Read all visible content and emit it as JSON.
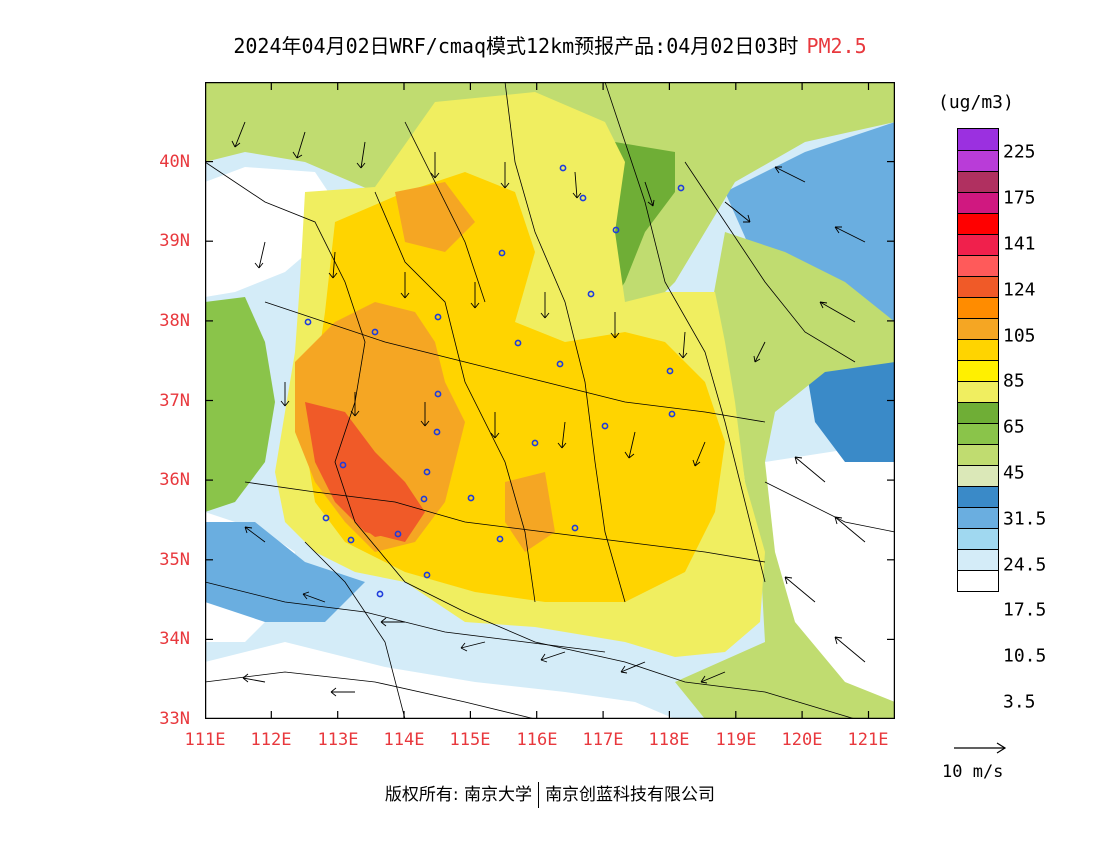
{
  "title": {
    "main": "2024年04月02日WRF/cmaq模式12km预报产品:04月02日03时",
    "pollutant": "PM2.5"
  },
  "map": {
    "lat_labels": [
      "40N",
      "39N",
      "38N",
      "37N",
      "36N",
      "35N",
      "34N",
      "33N"
    ],
    "lon_labels": [
      "111E",
      "112E",
      "113E",
      "114E",
      "115E",
      "116E",
      "117E",
      "118E",
      "119E",
      "120E",
      "121E"
    ],
    "lat_range": [
      33,
      41
    ],
    "lon_range": [
      111,
      121.4
    ]
  },
  "legend": {
    "unit": "(ug/m3)",
    "levels": [
      "225",
      "175",
      "141",
      "124",
      "105",
      "85",
      "65",
      "45",
      "31.5",
      "24.5",
      "17.5",
      "10.5",
      "3.5"
    ],
    "colors": [
      "#9b30e0",
      "#b93cd8",
      "#b03060",
      "#d01880",
      "#ff0000",
      "#f0204c",
      "#ff5a5a",
      "#f05a28",
      "#ff8c00",
      "#f5a623",
      "#ffd400",
      "#fff000",
      "#f0ee60",
      "#6fae36",
      "#8ac44a",
      "#c0dc70",
      "#dbe8b8",
      "#3a8ac8",
      "#6aaee0",
      "#a0d8f0",
      "#d4ecf8",
      "#ffffff"
    ]
  },
  "wind_scale": {
    "label": "10 m/s"
  },
  "footer": {
    "copyright": "版权所有: 南京大学",
    "company": "南京创蓝科技有限公司"
  }
}
